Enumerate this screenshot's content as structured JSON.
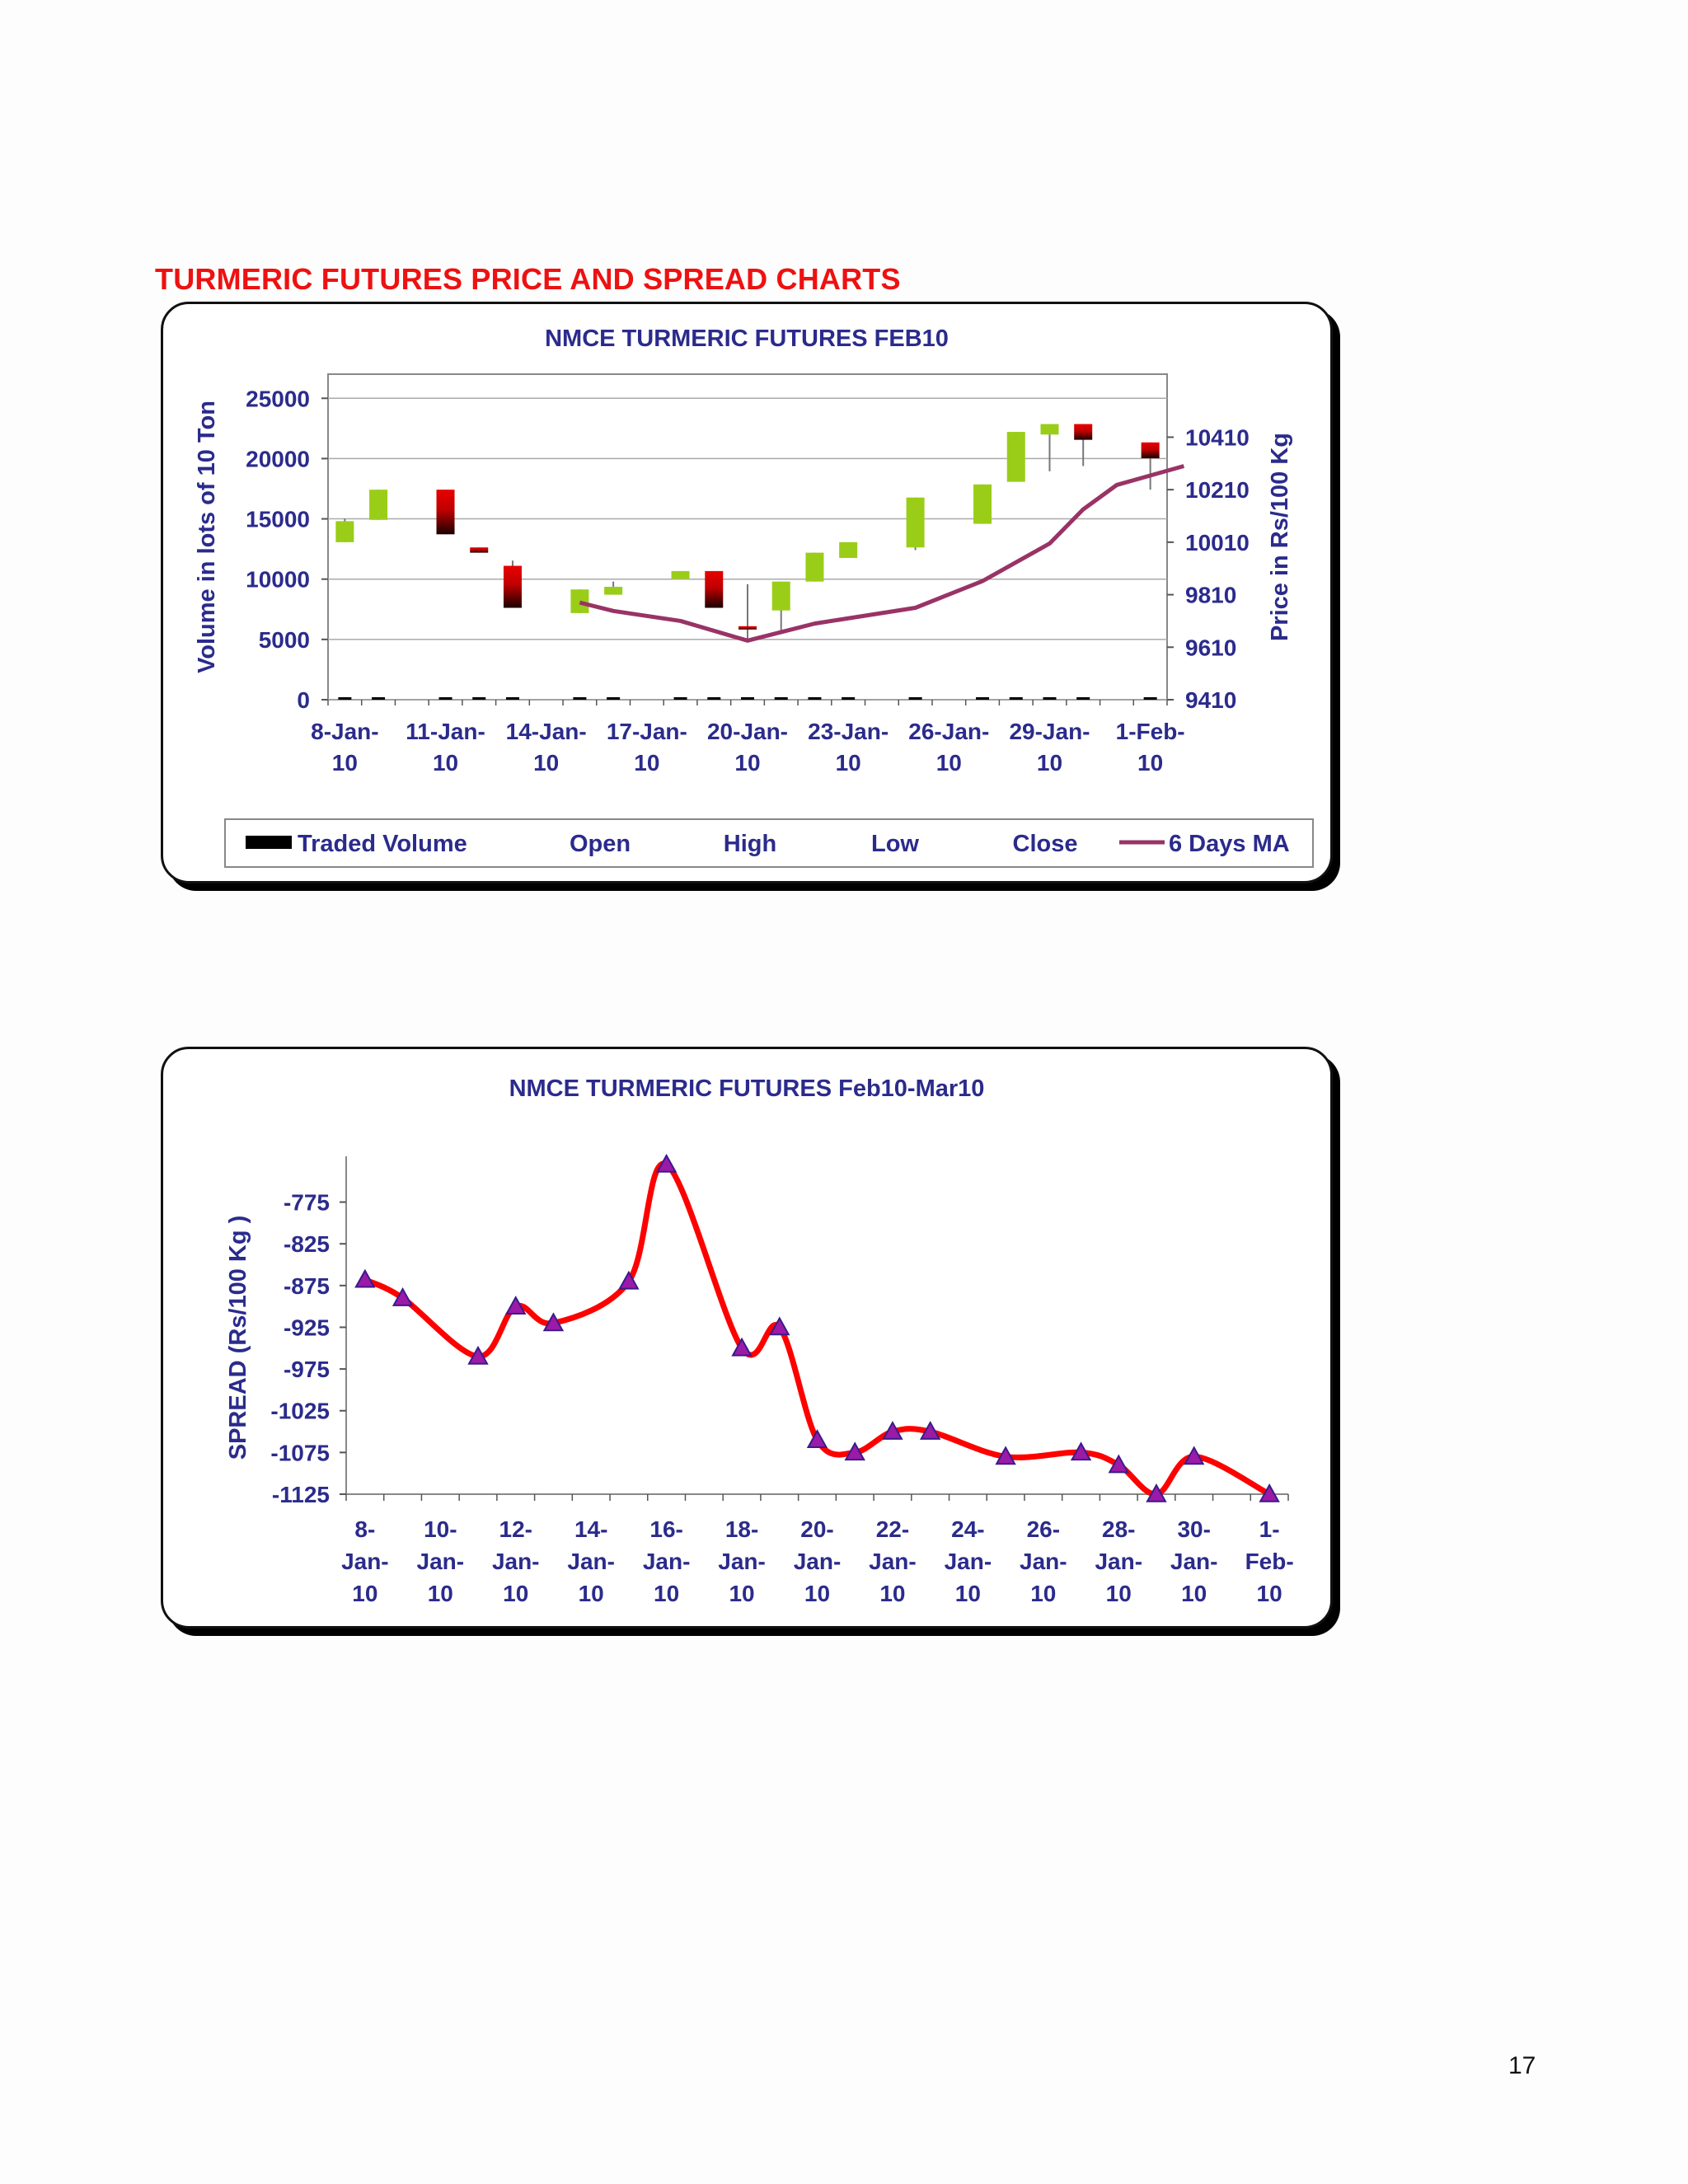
{
  "page": {
    "title": "TURMERIC FUTURES PRICE AND SPREAD CHARTS",
    "number": "17"
  },
  "chart_data": [
    {
      "type": "candlestick",
      "title": "NMCE TURMERIC FUTURES FEB10",
      "ylabel": "Volume in lots of 10 Ton",
      "y2label": "Price in Rs/100 Kg",
      "ylim": [
        0,
        27000
      ],
      "y2lim": [
        9410,
        10650
      ],
      "yticks": [
        0,
        5000,
        10000,
        15000,
        20000,
        25000
      ],
      "y2ticks": [
        9410,
        9610,
        9810,
        10010,
        10210,
        10410
      ],
      "xticks": [
        "8-Jan-10",
        "11-Jan-10",
        "14-Jan-10",
        "17-Jan-10",
        "20-Jan-10",
        "23-Jan-10",
        "26-Jan-10",
        "29-Jan-10",
        "1-Feb-10"
      ],
      "legend": [
        "Traded Volume",
        "Open",
        "High",
        "Low",
        "Close",
        "6 Days MA"
      ],
      "legend_position": "bottom",
      "colors": {
        "up": "#9acd18",
        "down": "#e80000",
        "ma": "#993366",
        "volume": "#000000",
        "axis_text": "#2b2b8c"
      },
      "candles": [
        {
          "day": 0,
          "open": 10010,
          "close": 10090,
          "high": 10100,
          "low": 10010,
          "volume": 80
        },
        {
          "day": 1,
          "open": 10095,
          "close": 10210,
          "high": 10210,
          "low": 10095,
          "volume": 60
        },
        {
          "day": 3,
          "open": 10210,
          "close": 10040,
          "high": 10210,
          "low": 10040,
          "volume": 120
        },
        {
          "day": 4,
          "open": 9990,
          "close": 9970,
          "high": 9990,
          "low": 9970,
          "volume": 90
        },
        {
          "day": 5,
          "open": 9920,
          "close": 9760,
          "high": 9940,
          "low": 9760,
          "volume": 150
        },
        {
          "day": 7,
          "open": 9740,
          "close": 9830,
          "high": 9830,
          "low": 9740,
          "volume": 110
        },
        {
          "day": 8,
          "open": 9810,
          "close": 9840,
          "high": 9860,
          "low": 9810,
          "volume": 60
        },
        {
          "day": 10,
          "open": 9870,
          "close": 9900,
          "high": 9900,
          "low": 9870,
          "volume": 100
        },
        {
          "day": 11,
          "open": 9900,
          "close": 9760,
          "high": 9900,
          "low": 9760,
          "volume": 120
        },
        {
          "day": 12,
          "open": 9690,
          "close": 9680,
          "high": 9850,
          "low": 9640,
          "volume": 130
        },
        {
          "day": 13,
          "open": 9750,
          "close": 9860,
          "high": 9860,
          "low": 9660,
          "volume": 90
        },
        {
          "day": 14,
          "open": 9860,
          "close": 9970,
          "high": 9970,
          "low": 9860,
          "volume": 70
        },
        {
          "day": 15,
          "open": 9950,
          "close": 10010,
          "high": 10010,
          "low": 9950,
          "volume": 60
        },
        {
          "day": 17,
          "open": 9990,
          "close": 10180,
          "high": 10180,
          "low": 9980,
          "volume": 50
        },
        {
          "day": 19,
          "open": 10080,
          "close": 10230,
          "high": 10230,
          "low": 10080,
          "volume": 40
        },
        {
          "day": 20,
          "open": 10240,
          "close": 10430,
          "high": 10430,
          "low": 10240,
          "volume": 60
        },
        {
          "day": 21,
          "open": 10420,
          "close": 10460,
          "high": 10460,
          "low": 10280,
          "volume": 70
        },
        {
          "day": 22,
          "open": 10460,
          "close": 10400,
          "high": 10460,
          "low": 10300,
          "volume": 80
        },
        {
          "day": 24,
          "open": 10390,
          "close": 10330,
          "high": 10390,
          "low": 10210,
          "volume": 100
        }
      ],
      "ma_series": [
        {
          "day": 7,
          "value": 9780
        },
        {
          "day": 8,
          "value": 9748
        },
        {
          "day": 10,
          "value": 9710
        },
        {
          "day": 12,
          "value": 9635
        },
        {
          "day": 14,
          "value": 9700
        },
        {
          "day": 17,
          "value": 9760
        },
        {
          "day": 19,
          "value": 9862
        },
        {
          "day": 21,
          "value": 10005
        },
        {
          "day": 22,
          "value": 10135
        },
        {
          "day": 23,
          "value": 10228
        },
        {
          "day": 25,
          "value": 10300
        }
      ]
    },
    {
      "type": "line",
      "title": "NMCE TURMERIC FUTURES Feb10-Mar10",
      "ylabel": "SPREAD (Rs/100 Kg    )",
      "ylim": [
        -1125,
        -730
      ],
      "yticks": [
        -775,
        -825,
        -875,
        -925,
        -975,
        -1025,
        -1075,
        -1125
      ],
      "xticks": [
        "8-Jan-10",
        "10-Jan-10",
        "12-Jan-10",
        "14-Jan-10",
        "16-Jan-10",
        "18-Jan-10",
        "20-Jan-10",
        "22-Jan-10",
        "24-Jan-10",
        "26-Jan-10",
        "28-Jan-10",
        "30-Jan-10",
        "1-Feb-10"
      ],
      "colors": {
        "line": "#ff0000",
        "marker": "#9b1aa8",
        "axis_text": "#2b2b8c"
      },
      "series": [
        {
          "points": [
            {
              "day": 0,
              "value": -868
            },
            {
              "day": 1,
              "value": -890
            },
            {
              "day": 3,
              "value": -960
            },
            {
              "day": 4,
              "value": -900
            },
            {
              "day": 5,
              "value": -920
            },
            {
              "day": 7,
              "value": -870
            },
            {
              "day": 8,
              "value": -730
            },
            {
              "day": 10,
              "value": -950
            },
            {
              "day": 11,
              "value": -925
            },
            {
              "day": 12,
              "value": -1060
            },
            {
              "day": 13,
              "value": -1075
            },
            {
              "day": 14,
              "value": -1050
            },
            {
              "day": 15,
              "value": -1050
            },
            {
              "day": 17,
              "value": -1080
            },
            {
              "day": 19,
              "value": -1075
            },
            {
              "day": 20,
              "value": -1090
            },
            {
              "day": 21,
              "value": -1125
            },
            {
              "day": 22,
              "value": -1080
            },
            {
              "day": 24,
              "value": -1125
            }
          ]
        }
      ]
    }
  ]
}
